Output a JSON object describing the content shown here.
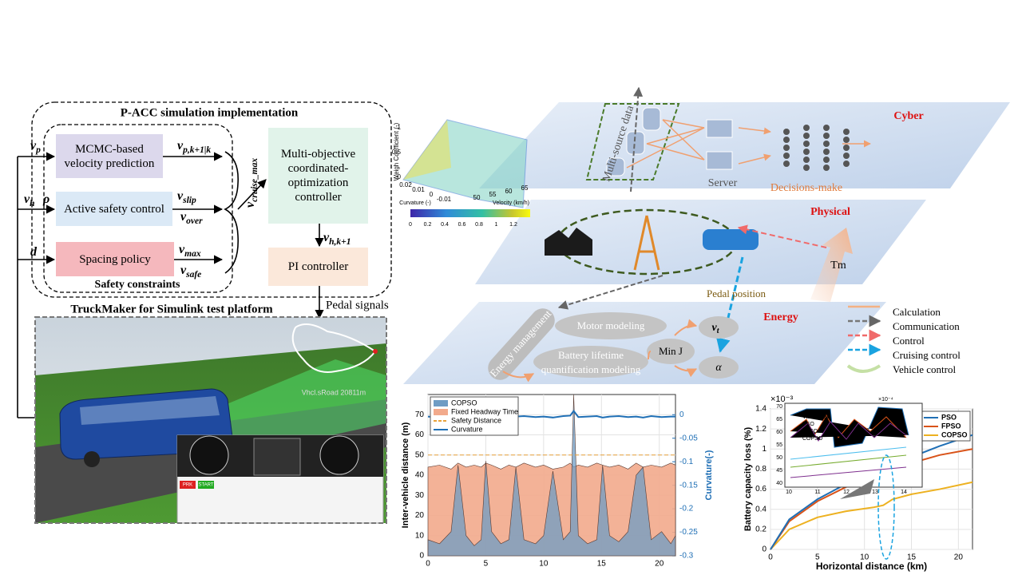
{
  "diagram": {
    "simulation": {
      "title": "P-ACC simulation implementation",
      "mcmc": "MCMC-based velocity prediction",
      "active": "Active safety control",
      "spacing": "Spacing policy",
      "controller": "Multi-objective coordinated-optimization controller",
      "pi": "PI controller",
      "safety": "Safety constraints",
      "pedal": "Pedal signals",
      "symbols": {
        "vp": {
          "text": "v",
          "sub": "p"
        },
        "vh": {
          "text": "v",
          "sub": "h"
        },
        "rho": {
          "text": "ρ",
          "sub": ""
        },
        "d": {
          "text": "d",
          "sub": ""
        },
        "vpk": {
          "text": "v",
          "sub": "p,k+1|k"
        },
        "vslip": {
          "text": "v",
          "sub": "slip"
        },
        "vover": {
          "text": "v",
          "sub": "over"
        },
        "vmax": {
          "text": "v",
          "sub": "max"
        },
        "vsafe": {
          "text": "v",
          "sub": "safe"
        },
        "vcruise": {
          "text": "v",
          "sub": "cruise_max"
        },
        "vhk": {
          "text": "v",
          "sub": "h,k+1"
        }
      }
    },
    "truckmaker": {
      "title": "TruckMaker for Simulink test platform",
      "road": "Vhcl.sRoad  20811m",
      "buttons": [
        "PRK",
        "START"
      ]
    },
    "layers": {
      "cyber": "Cyber",
      "physical": "Physical",
      "energy": "Energy",
      "data": "Multi-source data",
      "server": "Server",
      "decisions": "Decisions-make",
      "tm": "Tm",
      "pedal": "Pedal position",
      "management": "Energy management",
      "motor": "Motor modeling",
      "battery": "Battery lifetime quantification modeling",
      "minj": "Min J",
      "vt": {
        "text": "v",
        "sub": "t"
      },
      "alpha": "α"
    },
    "surface": {
      "zlabel": "Weigh Coefficient (-)",
      "xlabel": "Curvature (-)",
      "ylabel": "Velocity (km/h)",
      "zticks": [
        "0",
        "0.5",
        "1"
      ],
      "xticks": [
        "0.02",
        "0.01",
        "0",
        "-0.01"
      ],
      "yticks": [
        "50",
        "55",
        "60",
        "65"
      ],
      "cticks": [
        "0",
        "0.2",
        "0.4",
        "0.6",
        "0.8",
        "1",
        "1.2"
      ]
    },
    "legend": [
      "Calculation",
      "Communication",
      "Control",
      "Cruising control",
      "Vehicle control"
    ],
    "inset": {
      "names": [
        "VmaxRoad",
        "PSO",
        "FPSO",
        "COPSO"
      ],
      "xticks": [
        "10",
        "11",
        "12",
        "13",
        "14"
      ],
      "yticks": [
        "40",
        "45",
        "50",
        "55",
        "60",
        "65",
        "70"
      ],
      "multiplier": "×10⁻⁴"
    }
  },
  "chart_data": [
    {
      "type": "line",
      "xlabel": "",
      "ylabel": "Inter-vehicle distance (m)",
      "y2label": "Curvature(-)",
      "x": [
        0,
        1,
        2,
        2.6,
        3.3,
        4,
        4.6,
        5,
        5.5,
        6.3,
        7,
        7.6,
        8.3,
        9.3,
        10,
        10.8,
        11.7,
        12.3,
        12.6,
        13,
        13.8,
        14.6,
        15.1,
        15.7,
        16.5,
        17.3,
        18,
        18.6,
        19.3,
        20.2,
        21,
        21.4
      ],
      "series": [
        {
          "name": "COPSO",
          "color": "#6e9cc4",
          "style": "area",
          "values": [
            8,
            6,
            12,
            45,
            10,
            5,
            8,
            47,
            12,
            6,
            8,
            44,
            8,
            6,
            10,
            42,
            8,
            12,
            80,
            10,
            6,
            8,
            45,
            10,
            7,
            12,
            40,
            44,
            8,
            12,
            6,
            10
          ]
        },
        {
          "name": "Fixed Headway Time",
          "color": "#f2aa8c",
          "style": "area",
          "values": [
            44,
            45,
            43,
            46,
            44,
            45,
            44,
            46,
            45,
            43,
            45,
            44,
            46,
            44,
            45,
            43,
            44,
            46,
            44,
            45,
            44,
            46,
            45,
            44,
            45,
            43,
            46,
            44,
            45,
            44,
            46,
            45
          ]
        },
        {
          "name": "Safety Distance",
          "color": "#e8a33c",
          "style": "dashed",
          "values": [
            50,
            50,
            50,
            50,
            50,
            50,
            50,
            50,
            50,
            50,
            50,
            50,
            50,
            50,
            50,
            50,
            50,
            50,
            50,
            50,
            50,
            50,
            50,
            50,
            50,
            50,
            50,
            50,
            50,
            50,
            50,
            50
          ]
        },
        {
          "name": "Curvature",
          "color": "#1f6fb5",
          "style": "line",
          "axis": "y2",
          "values": [
            -0.004,
            -0.006,
            -0.002,
            -0.005,
            -0.003,
            -0.006,
            -0.004,
            -0.003,
            -0.005,
            -0.002,
            -0.006,
            -0.004,
            -0.003,
            -0.005,
            -0.004,
            -0.006,
            -0.003,
            -0.002,
            0.008,
            -0.005,
            -0.004,
            -0.003,
            -0.006,
            -0.004,
            -0.003,
            -0.005,
            -0.004,
            -0.006,
            -0.003,
            -0.005,
            -0.004,
            -0.004
          ]
        }
      ],
      "xlim": [
        0,
        21.4
      ],
      "xticks": [
        0,
        5,
        10,
        15,
        20
      ],
      "ylim": [
        0,
        80
      ],
      "yticks": [
        0,
        10,
        20,
        30,
        40,
        50,
        60,
        70
      ],
      "y2lim": [
        -0.3,
        0.0429
      ],
      "y2ticks": [
        0,
        -0.05,
        -0.1,
        -0.15,
        -0.2,
        -0.25,
        -0.3
      ],
      "grid": true,
      "legend": "upper left"
    },
    {
      "type": "line",
      "xlabel": "Horizontal distance  (km)",
      "ylabel": "Battery capacity loss (%)",
      "multiplier": "×10⁻³",
      "x": [
        0,
        2,
        5,
        8,
        11,
        12,
        13,
        15,
        18,
        21.5
      ],
      "series": [
        {
          "name": "PSO",
          "color": "#1f6fb5",
          "style": "line",
          "values": [
            0,
            0.3,
            0.5,
            0.65,
            0.78,
            0.8,
            0.85,
            0.92,
            1.03,
            1.14
          ]
        },
        {
          "name": "FPSO",
          "color": "#d95319",
          "style": "line",
          "values": [
            0,
            0.28,
            0.48,
            0.62,
            0.72,
            0.74,
            0.8,
            0.86,
            0.94,
            1.0
          ]
        },
        {
          "name": "COPSO",
          "color": "#edb120",
          "style": "line",
          "values": [
            0,
            0.2,
            0.32,
            0.38,
            0.42,
            0.44,
            0.5,
            0.55,
            0.6,
            0.67
          ]
        }
      ],
      "xlim": [
        0,
        21.5
      ],
      "xticks": [
        0,
        5,
        10,
        15,
        20
      ],
      "ylim": [
        0,
        1.4
      ],
      "yticks": [
        0,
        0.2,
        0.4,
        0.6,
        0.8,
        1,
        1.2,
        1.4
      ],
      "grid": true,
      "legend": "upper right"
    }
  ]
}
